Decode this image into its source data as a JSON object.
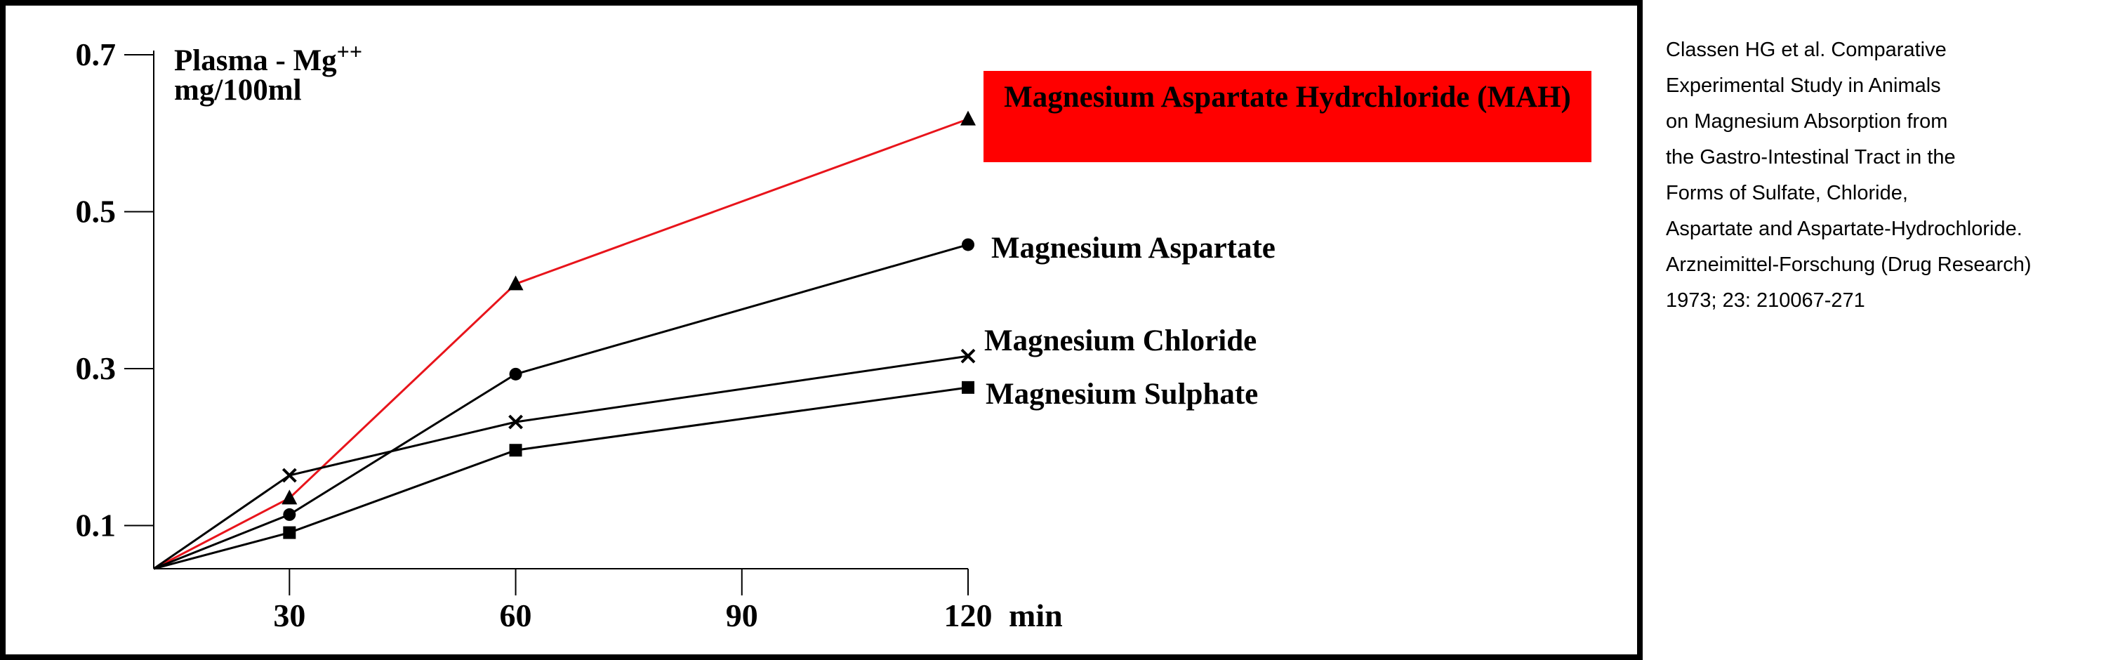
{
  "chart_data": {
    "type": "line",
    "ylabel": "Plasma - Mg",
    "ylabel_superscript": "++",
    "ylabel_unit": "mg/100ml",
    "xlabel": "min",
    "x": [
      12,
      30,
      60,
      120
    ],
    "xlim": [
      12,
      120
    ],
    "xticks": [
      30,
      60,
      90,
      120
    ],
    "ylim": [
      0.045,
      0.7
    ],
    "yticks": [
      0.1,
      0.3,
      0.5,
      0.7
    ],
    "grid": false,
    "series": [
      {
        "name": "Magnesium Aspartate Hydrchloride (MAH)",
        "color": "#e8141b",
        "marker": "triangle",
        "values": [
          0.045,
          0.135,
          0.408,
          0.618
        ]
      },
      {
        "name": "Magnesium Aspartate",
        "color": "#000000",
        "marker": "circle",
        "values": [
          0.045,
          0.114,
          0.293,
          0.458
        ]
      },
      {
        "name": "Magnesium Chloride",
        "color": "#000000",
        "marker": "x",
        "values": [
          0.045,
          0.164,
          0.232,
          0.316
        ]
      },
      {
        "name": "Magnesium Sulphate",
        "color": "#000000",
        "marker": "square",
        "values": [
          0.045,
          0.091,
          0.196,
          0.276
        ]
      }
    ]
  },
  "citation": [
    "Classen HG et al. Comparative",
    "Experimental Study in Animals",
    "on Magnesium Absorption from",
    "the Gastro-Intestinal Tract in the",
    "Forms of Sulfate, Chloride,",
    "Aspartate and Aspartate-Hydrochloride.",
    "Arzneimittel-Forschung (Drug Research)",
    "1973; 23: 210067-271"
  ]
}
